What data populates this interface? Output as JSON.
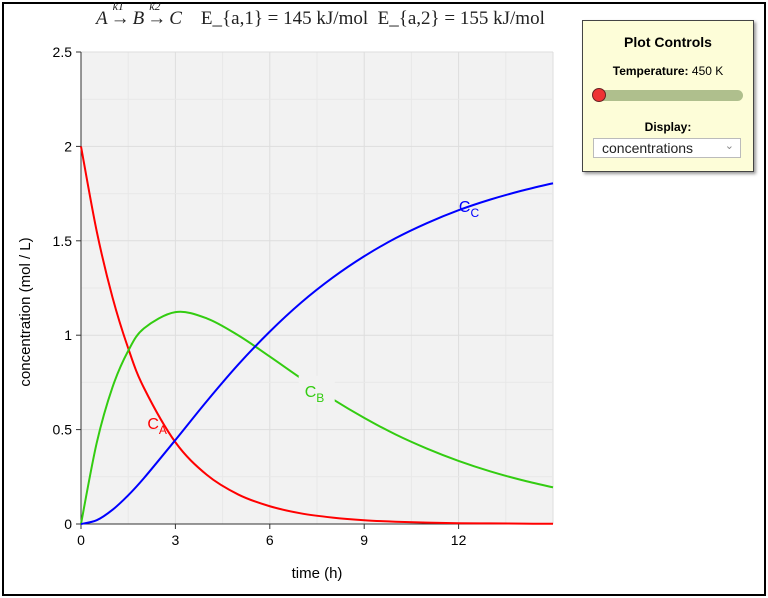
{
  "header": {
    "reaction": [
      "A",
      "B",
      "C"
    ],
    "rate_constants": [
      "k1",
      "k2"
    ],
    "ea1": "E_{a,1} = 145 kJ/mol",
    "ea2": "E_{a,2} = 155 kJ/mol"
  },
  "controls": {
    "title": "Plot Controls",
    "temperature_label": "Temperature:",
    "temperature_value": "450 K",
    "temperature_fraction": 0.0,
    "display_label": "Display:",
    "display_value": "concentrations"
  },
  "chart_data": {
    "type": "line",
    "xlabel": "time (h)",
    "ylabel": "concentration (mol / L)",
    "xlim": [
      0,
      15
    ],
    "ylim": [
      0,
      2.5
    ],
    "xticks": [
      0,
      3,
      6,
      9,
      12
    ],
    "yticks": [
      0,
      0.5,
      1,
      1.5,
      2,
      2.5
    ],
    "xtick_labels": [
      "0",
      "3",
      "6",
      "9",
      "12"
    ],
    "ytick_labels": [
      "0",
      "0.5",
      "1",
      "1.5",
      "2",
      "2.5"
    ],
    "grid": true,
    "colors": {
      "C_A": "#ff0000",
      "C_B": "#33cc11",
      "C_C": "#0000ff"
    },
    "x": [
      0,
      0.5,
      1,
      1.5,
      2,
      3,
      4,
      5,
      6,
      7,
      8,
      9,
      10,
      11,
      12,
      13,
      14,
      15
    ],
    "series": [
      {
        "name": "C_A",
        "label": "C",
        "sub": "A",
        "values": [
          2,
          1.55,
          1.201,
          0.931,
          0.721,
          0.433,
          0.26,
          0.156,
          0.094,
          0.056,
          0.034,
          0.02,
          0.012,
          0.007,
          0.004,
          0.003,
          0.002,
          0.001
        ]
      },
      {
        "name": "C_B",
        "label": "C",
        "sub": "B",
        "values": [
          0,
          0.43,
          0.724,
          0.917,
          1.036,
          1.122,
          1.089,
          0.999,
          0.887,
          0.771,
          0.661,
          0.562,
          0.474,
          0.399,
          0.334,
          0.279,
          0.233,
          0.194
        ]
      },
      {
        "name": "C_C",
        "label": "C",
        "sub": "C",
        "values": [
          0,
          0.02,
          0.075,
          0.152,
          0.243,
          0.445,
          0.651,
          0.845,
          1.019,
          1.173,
          1.305,
          1.418,
          1.514,
          1.594,
          1.662,
          1.718,
          1.765,
          1.805
        ]
      }
    ]
  }
}
